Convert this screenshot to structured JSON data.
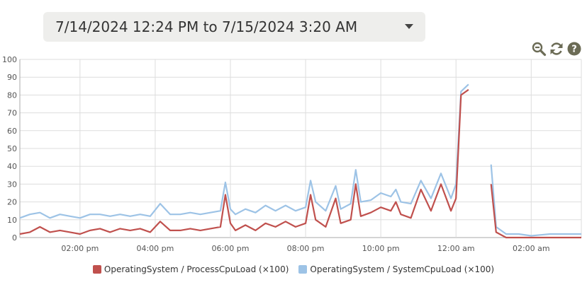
{
  "date_range": {
    "label": "7/14/2024 12:24 PM to 7/15/2024 3:20 AM"
  },
  "toolbar": {
    "icons": [
      "zoom-out-icon",
      "refresh-icon",
      "help-icon"
    ],
    "icon_color": "#6b6b55"
  },
  "colors": {
    "process": "#c0504d",
    "system": "#9dc3e6",
    "grid": "#dddddd",
    "axis": "#aaaaaa"
  },
  "chart_data": {
    "type": "line",
    "title": "",
    "xlabel": "",
    "ylabel": "",
    "ylim": [
      0,
      100
    ],
    "yticks": [
      0,
      10,
      20,
      30,
      40,
      50,
      60,
      70,
      80,
      90,
      100
    ],
    "xlim": [
      "7/14/2024 12:24 PM",
      "7/15/2024 3:20 AM"
    ],
    "xticks": [
      {
        "label": "02:00 pm",
        "time": "2024-07-14T14:00"
      },
      {
        "label": "04:00 pm",
        "time": "2024-07-14T16:00"
      },
      {
        "label": "06:00 pm",
        "time": "2024-07-14T18:00"
      },
      {
        "label": "08:00 pm",
        "time": "2024-07-14T20:00"
      },
      {
        "label": "10:00 pm",
        "time": "2024-07-14T22:00"
      },
      {
        "label": "12:00 am",
        "time": "2024-07-15T00:00"
      },
      {
        "label": "02:00 am",
        "time": "2024-07-15T02:00"
      }
    ],
    "grid": true,
    "legend_position": "bottom",
    "series": [
      {
        "name": "OperatingSystem / ProcessCpuLoad (×100)",
        "color": "#c0504d",
        "points": [
          [
            "2024-07-14T12:24",
            2
          ],
          [
            "2024-07-14T12:40",
            3
          ],
          [
            "2024-07-14T12:56",
            6
          ],
          [
            "2024-07-14T13:12",
            3
          ],
          [
            "2024-07-14T13:28",
            4
          ],
          [
            "2024-07-14T13:44",
            3
          ],
          [
            "2024-07-14T14:00",
            2
          ],
          [
            "2024-07-14T14:16",
            4
          ],
          [
            "2024-07-14T14:32",
            5
          ],
          [
            "2024-07-14T14:48",
            3
          ],
          [
            "2024-07-14T15:04",
            5
          ],
          [
            "2024-07-14T15:20",
            4
          ],
          [
            "2024-07-14T15:36",
            5
          ],
          [
            "2024-07-14T15:52",
            3
          ],
          [
            "2024-07-14T16:08",
            9
          ],
          [
            "2024-07-14T16:24",
            4
          ],
          [
            "2024-07-14T16:40",
            4
          ],
          [
            "2024-07-14T16:56",
            5
          ],
          [
            "2024-07-14T17:12",
            4
          ],
          [
            "2024-07-14T17:28",
            5
          ],
          [
            "2024-07-14T17:44",
            6
          ],
          [
            "2024-07-14T17:52",
            24
          ],
          [
            "2024-07-14T18:00",
            8
          ],
          [
            "2024-07-14T18:08",
            4
          ],
          [
            "2024-07-14T18:24",
            7
          ],
          [
            "2024-07-14T18:40",
            4
          ],
          [
            "2024-07-14T18:56",
            8
          ],
          [
            "2024-07-14T19:12",
            6
          ],
          [
            "2024-07-14T19:28",
            9
          ],
          [
            "2024-07-14T19:44",
            6
          ],
          [
            "2024-07-14T20:00",
            8
          ],
          [
            "2024-07-14T20:08",
            24
          ],
          [
            "2024-07-14T20:16",
            10
          ],
          [
            "2024-07-14T20:32",
            6
          ],
          [
            "2024-07-14T20:48",
            22
          ],
          [
            "2024-07-14T20:56",
            8
          ],
          [
            "2024-07-14T21:12",
            10
          ],
          [
            "2024-07-14T21:20",
            30
          ],
          [
            "2024-07-14T21:28",
            12
          ],
          [
            "2024-07-14T21:44",
            14
          ],
          [
            "2024-07-14T22:00",
            17
          ],
          [
            "2024-07-14T22:16",
            15
          ],
          [
            "2024-07-14T22:24",
            20
          ],
          [
            "2024-07-14T22:32",
            13
          ],
          [
            "2024-07-14T22:48",
            11
          ],
          [
            "2024-07-14T23:04",
            27
          ],
          [
            "2024-07-14T23:20",
            15
          ],
          [
            "2024-07-14T23:36",
            30
          ],
          [
            "2024-07-14T23:52",
            15
          ],
          [
            "2024-07-15T00:00",
            22
          ],
          [
            "2024-07-15T00:08",
            80
          ],
          [
            "2024-07-15T00:20",
            83
          ]
        ],
        "segment2": [
          [
            "2024-07-15T00:56",
            30
          ],
          [
            "2024-07-15T01:04",
            3
          ],
          [
            "2024-07-15T01:20",
            0
          ],
          [
            "2024-07-15T01:40",
            0
          ],
          [
            "2024-07-15T02:00",
            0
          ],
          [
            "2024-07-15T02:30",
            0
          ],
          [
            "2024-07-15T03:00",
            0
          ],
          [
            "2024-07-15T03:20",
            0
          ]
        ]
      },
      {
        "name": "OperatingSystem / SystemCpuLoad (×100)",
        "color": "#9dc3e6",
        "points": [
          [
            "2024-07-14T12:24",
            11
          ],
          [
            "2024-07-14T12:40",
            13
          ],
          [
            "2024-07-14T12:56",
            14
          ],
          [
            "2024-07-14T13:12",
            11
          ],
          [
            "2024-07-14T13:28",
            13
          ],
          [
            "2024-07-14T13:44",
            12
          ],
          [
            "2024-07-14T14:00",
            11
          ],
          [
            "2024-07-14T14:16",
            13
          ],
          [
            "2024-07-14T14:32",
            13
          ],
          [
            "2024-07-14T14:48",
            12
          ],
          [
            "2024-07-14T15:04",
            13
          ],
          [
            "2024-07-14T15:20",
            12
          ],
          [
            "2024-07-14T15:36",
            13
          ],
          [
            "2024-07-14T15:52",
            12
          ],
          [
            "2024-07-14T16:08",
            19
          ],
          [
            "2024-07-14T16:24",
            13
          ],
          [
            "2024-07-14T16:40",
            13
          ],
          [
            "2024-07-14T16:56",
            14
          ],
          [
            "2024-07-14T17:12",
            13
          ],
          [
            "2024-07-14T17:28",
            14
          ],
          [
            "2024-07-14T17:44",
            15
          ],
          [
            "2024-07-14T17:52",
            31
          ],
          [
            "2024-07-14T18:00",
            16
          ],
          [
            "2024-07-14T18:08",
            13
          ],
          [
            "2024-07-14T18:24",
            16
          ],
          [
            "2024-07-14T18:40",
            14
          ],
          [
            "2024-07-14T18:56",
            18
          ],
          [
            "2024-07-14T19:12",
            15
          ],
          [
            "2024-07-14T19:28",
            18
          ],
          [
            "2024-07-14T19:44",
            15
          ],
          [
            "2024-07-14T20:00",
            17
          ],
          [
            "2024-07-14T20:08",
            32
          ],
          [
            "2024-07-14T20:16",
            20
          ],
          [
            "2024-07-14T20:32",
            15
          ],
          [
            "2024-07-14T20:48",
            29
          ],
          [
            "2024-07-14T20:56",
            16
          ],
          [
            "2024-07-14T21:12",
            19
          ],
          [
            "2024-07-14T21:20",
            38
          ],
          [
            "2024-07-14T21:28",
            20
          ],
          [
            "2024-07-14T21:44",
            21
          ],
          [
            "2024-07-14T22:00",
            25
          ],
          [
            "2024-07-14T22:16",
            23
          ],
          [
            "2024-07-14T22:24",
            27
          ],
          [
            "2024-07-14T22:32",
            20
          ],
          [
            "2024-07-14T22:48",
            19
          ],
          [
            "2024-07-14T23:04",
            32
          ],
          [
            "2024-07-14T23:20",
            22
          ],
          [
            "2024-07-14T23:36",
            36
          ],
          [
            "2024-07-14T23:52",
            22
          ],
          [
            "2024-07-15T00:00",
            30
          ],
          [
            "2024-07-15T00:08",
            82
          ],
          [
            "2024-07-15T00:20",
            86
          ]
        ],
        "segment2": [
          [
            "2024-07-15T00:56",
            41
          ],
          [
            "2024-07-15T01:04",
            6
          ],
          [
            "2024-07-15T01:20",
            2
          ],
          [
            "2024-07-15T01:40",
            2
          ],
          [
            "2024-07-15T02:00",
            1
          ],
          [
            "2024-07-15T02:30",
            2
          ],
          [
            "2024-07-15T03:00",
            2
          ],
          [
            "2024-07-15T03:20",
            2
          ]
        ]
      }
    ]
  }
}
